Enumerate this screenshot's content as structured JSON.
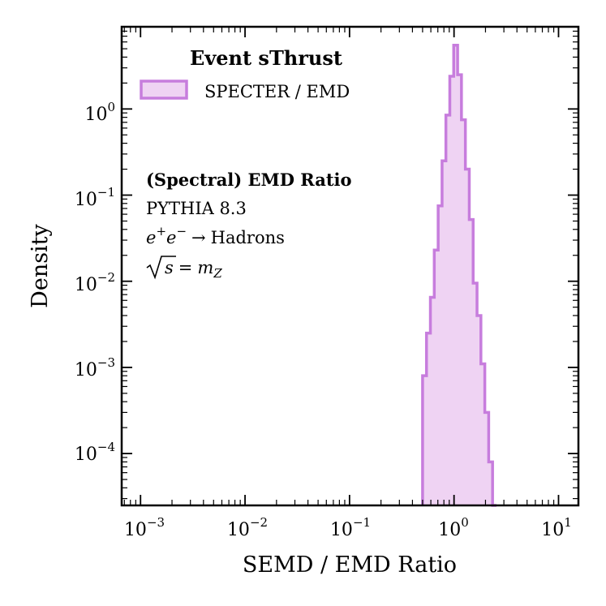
{
  "chart_data": {
    "type": "histogram",
    "xscale": "log",
    "yscale": "log",
    "xlim": [
      0.00066,
      15.5
    ],
    "ylim": [
      2.5e-05,
      9.0
    ],
    "xlabel": "SEMD / EMD Ratio",
    "ylabel": "Density",
    "x_ticks": [
      {
        "value": 0.001,
        "base": "10",
        "exp": "−3"
      },
      {
        "value": 0.01,
        "base": "10",
        "exp": "−2"
      },
      {
        "value": 0.1,
        "base": "10",
        "exp": "−1"
      },
      {
        "value": 1,
        "base": "10",
        "exp": "0"
      },
      {
        "value": 10,
        "base": "10",
        "exp": "1"
      }
    ],
    "y_ticks": [
      {
        "value": 0.0001,
        "base": "10",
        "exp": "−4"
      },
      {
        "value": 0.001,
        "base": "10",
        "exp": "−3"
      },
      {
        "value": 0.01,
        "base": "10",
        "exp": "−2"
      },
      {
        "value": 0.1,
        "base": "10",
        "exp": "−1"
      },
      {
        "value": 1,
        "base": "10",
        "exp": "0"
      }
    ],
    "legend": {
      "title": "Event sThrust",
      "entries": [
        {
          "label": "SPECTER / EMD"
        }
      ],
      "location": "upper-left"
    },
    "series": [
      {
        "name": "SPECTER / EMD",
        "style": "step-filled",
        "bin_edges": [
          0.5,
          0.545,
          0.594,
          0.647,
          0.705,
          0.768,
          0.836,
          0.911,
          0.993,
          1.082,
          1.178,
          1.284,
          1.399,
          1.524,
          1.66,
          1.808,
          1.97,
          2.146,
          2.338,
          2.548
        ],
        "values": [
          0.0008,
          0.0025,
          0.0065,
          0.023,
          0.075,
          0.25,
          0.85,
          2.4,
          5.5,
          2.5,
          0.75,
          0.2,
          0.052,
          0.0095,
          0.004,
          0.0011,
          0.0003,
          8e-05,
          2.5e-05
        ]
      }
    ],
    "annotations": {
      "bold_line": "(Spectral) EMD Ratio",
      "generator": "PYTHIA 8.3",
      "process": {
        "ep": "e",
        "ep_sup": "+",
        "em": "e",
        "em_sup": "−",
        "arrow": "→",
        "product": "Hadrons"
      },
      "energy": {
        "s": "s",
        "eq": "=",
        "m": "m",
        "m_sub": "Z"
      }
    },
    "colors": {
      "edge": "#c77ddd",
      "fill": "#efd3f3",
      "axis": "#000000"
    },
    "grid": false
  }
}
